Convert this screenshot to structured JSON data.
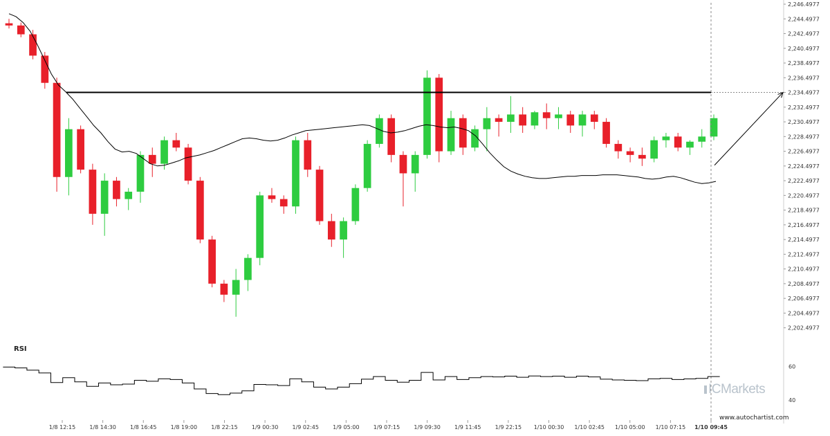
{
  "chart_data": {
    "type": "candlestick",
    "price_axis": {
      "ticks": [
        "2,246.4977",
        "2,244.4977",
        "2,242.4977",
        "2,240.4977",
        "2,238.4977",
        "2,236.4977",
        "2,234.4977",
        "2,232.4977",
        "2,230.4977",
        "2,228.4977",
        "2,226.4977",
        "2,224.4977",
        "2,222.4977",
        "2,220.4977",
        "2,218.4977",
        "2,216.4977",
        "2,214.4977",
        "2,212.4977",
        "2,210.4977",
        "2,208.4977",
        "2,206.4977",
        "2,204.4977",
        "2,202.4977"
      ],
      "ylim": [
        2201.9,
        2246.5
      ]
    },
    "time_labels": [
      "1/8 12:15",
      "1/8 14:30",
      "1/8 16:45",
      "1/8 19:00",
      "1/8 22:15",
      "1/9 00:30",
      "1/9 02:45",
      "1/9 05:00",
      "1/9 07:15",
      "1/9 09:30",
      "1/9 11:45",
      "1/9 22:15",
      "1/10 00:30",
      "1/10 02:45",
      "1/10 05:00",
      "1/10 07:15",
      "1/10 09:45"
    ],
    "resistance_level": 2234.4977,
    "projection_arrow": {
      "from_price": 2224.6,
      "to_price": 2234.4977
    },
    "colors": {
      "up": "#2ecc40",
      "down": "#e8202a",
      "ma": "#000000",
      "rsi": "#000000"
    },
    "moving_average": [
      2245.2,
      2244.8,
      2244.0,
      2242.8,
      2241.0,
      2239.0,
      2237.0,
      2235.5,
      2234.6,
      2233.6,
      2232.4,
      2231.2,
      2230.0,
      2229.0,
      2227.8,
      2226.8,
      2226.4,
      2226.5,
      2226.2,
      2225.5,
      2224.8,
      2224.5,
      2224.6,
      2224.9,
      2225.2,
      2225.6,
      2225.8,
      2226.0,
      2226.3,
      2226.6,
      2227.0,
      2227.4,
      2227.8,
      2228.2,
      2228.3,
      2228.2,
      2228.0,
      2227.9,
      2228.0,
      2228.3,
      2228.7,
      2229.0,
      2229.3,
      2229.4,
      2229.5,
      2229.6,
      2229.7,
      2229.8,
      2229.9,
      2230.0,
      2230.1,
      2230.0,
      2229.6,
      2229.2,
      2229.0,
      2229.1,
      2229.3,
      2229.6,
      2229.9,
      2230.1,
      2230.0,
      2229.8,
      2229.7,
      2229.8,
      2229.6,
      2229.3,
      2228.6,
      2227.5,
      2226.3,
      2225.3,
      2224.4,
      2223.8,
      2223.4,
      2223.1,
      2222.9,
      2222.8,
      2222.8,
      2222.9,
      2223.0,
      2223.1,
      2223.1,
      2223.2,
      2223.2,
      2223.2,
      2223.3,
      2223.3,
      2223.3,
      2223.2,
      2223.1,
      2223.0,
      2222.8,
      2222.7,
      2222.8,
      2223.0,
      2223.1,
      2222.9,
      2222.6,
      2222.3,
      2222.1,
      2222.2,
      2222.4
    ],
    "candles": [
      {
        "o": 2243.9,
        "h": 2244.5,
        "l": 2243.2,
        "c": 2243.6
      },
      {
        "o": 2243.6,
        "h": 2244.0,
        "l": 2242.0,
        "c": 2242.4
      },
      {
        "o": 2242.4,
        "h": 2243.0,
        "l": 2239.0,
        "c": 2239.5
      },
      {
        "o": 2239.5,
        "h": 2240.0,
        "l": 2235.0,
        "c": 2235.8
      },
      {
        "o": 2235.8,
        "h": 2236.5,
        "l": 2221.0,
        "c": 2223.0
      },
      {
        "o": 2223.0,
        "h": 2231.0,
        "l": 2220.5,
        "c": 2229.5
      },
      {
        "o": 2229.5,
        "h": 2230.0,
        "l": 2223.5,
        "c": 2224.0
      },
      {
        "o": 2224.0,
        "h": 2224.8,
        "l": 2216.5,
        "c": 2218.0
      },
      {
        "o": 2218.0,
        "h": 2223.5,
        "l": 2215.0,
        "c": 2222.5
      },
      {
        "o": 2222.5,
        "h": 2223.0,
        "l": 2219.0,
        "c": 2220.0
      },
      {
        "o": 2220.0,
        "h": 2221.5,
        "l": 2218.5,
        "c": 2221.0
      },
      {
        "o": 2221.0,
        "h": 2226.5,
        "l": 2219.5,
        "c": 2226.0
      },
      {
        "o": 2226.0,
        "h": 2227.0,
        "l": 2223.0,
        "c": 2224.8
      },
      {
        "o": 2224.8,
        "h": 2228.5,
        "l": 2224.0,
        "c": 2228.0
      },
      {
        "o": 2228.0,
        "h": 2229.0,
        "l": 2226.5,
        "c": 2227.0
      },
      {
        "o": 2227.0,
        "h": 2227.5,
        "l": 2222.0,
        "c": 2222.5
      },
      {
        "o": 2222.5,
        "h": 2223.0,
        "l": 2214.0,
        "c": 2214.5
      },
      {
        "o": 2214.5,
        "h": 2215.0,
        "l": 2208.0,
        "c": 2208.5
      },
      {
        "o": 2208.5,
        "h": 2209.0,
        "l": 2206.0,
        "c": 2207.0
      },
      {
        "o": 2207.0,
        "h": 2210.5,
        "l": 2204.0,
        "c": 2209.0
      },
      {
        "o": 2209.0,
        "h": 2212.5,
        "l": 2207.5,
        "c": 2212.0
      },
      {
        "o": 2212.0,
        "h": 2221.0,
        "l": 2211.0,
        "c": 2220.5
      },
      {
        "o": 2220.5,
        "h": 2221.5,
        "l": 2219.5,
        "c": 2220.0
      },
      {
        "o": 2220.0,
        "h": 2220.5,
        "l": 2218.0,
        "c": 2219.0
      },
      {
        "o": 2219.0,
        "h": 2228.5,
        "l": 2218.0,
        "c": 2228.0
      },
      {
        "o": 2228.0,
        "h": 2229.0,
        "l": 2223.0,
        "c": 2224.0
      },
      {
        "o": 2224.0,
        "h": 2224.5,
        "l": 2216.5,
        "c": 2217.0
      },
      {
        "o": 2217.0,
        "h": 2218.0,
        "l": 2213.5,
        "c": 2214.5
      },
      {
        "o": 2214.5,
        "h": 2217.5,
        "l": 2212.0,
        "c": 2217.0
      },
      {
        "o": 2217.0,
        "h": 2222.0,
        "l": 2216.5,
        "c": 2221.5
      },
      {
        "o": 2221.5,
        "h": 2228.0,
        "l": 2221.0,
        "c": 2227.5
      },
      {
        "o": 2227.5,
        "h": 2231.5,
        "l": 2227.0,
        "c": 2231.0
      },
      {
        "o": 2231.0,
        "h": 2231.5,
        "l": 2225.0,
        "c": 2226.0
      },
      {
        "o": 2226.0,
        "h": 2226.5,
        "l": 2219.0,
        "c": 2223.5
      },
      {
        "o": 2223.5,
        "h": 2226.5,
        "l": 2221.0,
        "c": 2226.0
      },
      {
        "o": 2226.0,
        "h": 2237.5,
        "l": 2225.5,
        "c": 2236.5
      },
      {
        "o": 2236.5,
        "h": 2237.0,
        "l": 2225.0,
        "c": 2226.5
      },
      {
        "o": 2226.5,
        "h": 2232.0,
        "l": 2226.0,
        "c": 2231.0
      },
      {
        "o": 2231.0,
        "h": 2231.5,
        "l": 2226.0,
        "c": 2227.0
      },
      {
        "o": 2227.0,
        "h": 2230.0,
        "l": 2226.5,
        "c": 2229.5
      },
      {
        "o": 2229.5,
        "h": 2232.5,
        "l": 2226.5,
        "c": 2231.0
      },
      {
        "o": 2231.0,
        "h": 2231.5,
        "l": 2228.5,
        "c": 2230.5
      },
      {
        "o": 2230.5,
        "h": 2234.0,
        "l": 2229.0,
        "c": 2231.5
      },
      {
        "o": 2231.5,
        "h": 2232.5,
        "l": 2229.0,
        "c": 2230.0
      },
      {
        "o": 2230.0,
        "h": 2232.0,
        "l": 2229.5,
        "c": 2231.8
      },
      {
        "o": 2231.8,
        "h": 2233.0,
        "l": 2229.5,
        "c": 2231.0
      },
      {
        "o": 2231.0,
        "h": 2232.5,
        "l": 2229.5,
        "c": 2231.5
      },
      {
        "o": 2231.5,
        "h": 2232.0,
        "l": 2229.0,
        "c": 2230.0
      },
      {
        "o": 2230.0,
        "h": 2232.0,
        "l": 2228.5,
        "c": 2231.5
      },
      {
        "o": 2231.5,
        "h": 2232.0,
        "l": 2229.5,
        "c": 2230.5
      },
      {
        "o": 2230.5,
        "h": 2231.0,
        "l": 2227.0,
        "c": 2227.5
      },
      {
        "o": 2227.5,
        "h": 2228.0,
        "l": 2225.5,
        "c": 2226.5
      },
      {
        "o": 2226.5,
        "h": 2227.0,
        "l": 2225.0,
        "c": 2226.0
      },
      {
        "o": 2226.0,
        "h": 2227.0,
        "l": 2224.5,
        "c": 2225.5
      },
      {
        "o": 2225.5,
        "h": 2228.5,
        "l": 2225.0,
        "c": 2228.0
      },
      {
        "o": 2228.0,
        "h": 2229.0,
        "l": 2227.0,
        "c": 2228.5
      },
      {
        "o": 2228.5,
        "h": 2229.0,
        "l": 2226.5,
        "c": 2227.0
      },
      {
        "o": 2227.0,
        "h": 2228.0,
        "l": 2226.0,
        "c": 2227.8
      },
      {
        "o": 2227.8,
        "h": 2229.5,
        "l": 2227.0,
        "c": 2228.5
      },
      {
        "o": 2228.5,
        "h": 2231.5,
        "l": 2228.0,
        "c": 2231.0
      }
    ],
    "rsi": {
      "label": "RSI",
      "ticks": [
        "60",
        "40"
      ],
      "ylim": [
        33,
        64
      ]
    }
  },
  "footer": {
    "watermark": "ICMarkets",
    "site": "www.autochartist.com"
  }
}
